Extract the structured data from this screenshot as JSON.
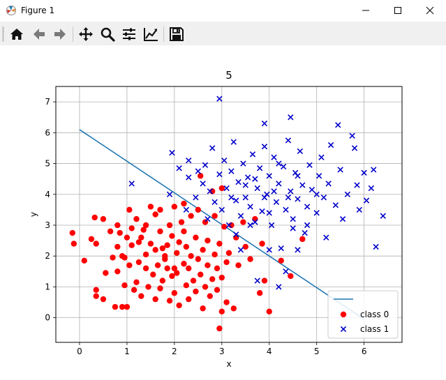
{
  "window": {
    "title": "Figure 1",
    "app_icon": "matplotlib-icon",
    "controls": [
      "minimize-icon",
      "maximize-icon",
      "close-icon"
    ]
  },
  "toolbar": {
    "buttons": [
      "home-icon",
      "back-arrow-icon",
      "forward-arrow-icon",
      "pan-icon",
      "zoom-icon",
      "configure-subplots-icon",
      "edit-axis-icon",
      "save-icon"
    ]
  },
  "colors": {
    "class0": "#ff0000",
    "class1": "#0000cc",
    "line": "#1f77b4"
  },
  "chart_data": {
    "type": "scatter",
    "title": "5",
    "xlabel": "x",
    "ylabel": "y",
    "xlim": [
      -0.5,
      6.8
    ],
    "ylim": [
      -0.8,
      7.5
    ],
    "xticks": [
      "0",
      "1",
      "2",
      "3",
      "4",
      "5",
      "6"
    ],
    "yticks": [
      "0",
      "1",
      "2",
      "3",
      "4",
      "5",
      "6",
      "7"
    ],
    "grid": true,
    "legend_position": "lower-right",
    "boundary_line": {
      "x": [
        0,
        6
      ],
      "y": [
        6.1,
        -0.05
      ]
    },
    "series": [
      {
        "name": "class 0",
        "marker": "o",
        "points": [
          [
            -0.15,
            2.75
          ],
          [
            -0.12,
            2.4
          ],
          [
            0.1,
            1.85
          ],
          [
            0.25,
            2.55
          ],
          [
            0.32,
            3.25
          ],
          [
            0.35,
            2.4
          ],
          [
            0.35,
            0.9
          ],
          [
            0.35,
            0.7
          ],
          [
            0.5,
            0.6
          ],
          [
            0.5,
            3.2
          ],
          [
            0.55,
            1.45
          ],
          [
            0.65,
            2.8
          ],
          [
            0.7,
            1.95
          ],
          [
            0.75,
            0.35
          ],
          [
            0.8,
            1.5
          ],
          [
            0.8,
            3.0
          ],
          [
            0.8,
            2.3
          ],
          [
            0.85,
            2.75
          ],
          [
            0.9,
            0.35
          ],
          [
            0.95,
            1.05
          ],
          [
            0.95,
            1.95
          ],
          [
            1.0,
            2.6
          ],
          [
            1.0,
            0.35
          ],
          [
            1.05,
            1.7
          ],
          [
            1.05,
            3.5
          ],
          [
            1.1,
            2.9
          ],
          [
            1.1,
            2.35
          ],
          [
            1.15,
            0.9
          ],
          [
            1.2,
            1.15
          ],
          [
            1.2,
            3.2
          ],
          [
            1.25,
            1.8
          ],
          [
            1.25,
            2.45
          ],
          [
            1.3,
            0.7
          ],
          [
            1.35,
            2.85
          ],
          [
            1.4,
            1.6
          ],
          [
            1.4,
            3.0
          ],
          [
            1.4,
            2.05
          ],
          [
            1.45,
            1.0
          ],
          [
            1.5,
            3.6
          ],
          [
            1.5,
            2.4
          ],
          [
            1.55,
            1.4
          ],
          [
            1.6,
            2.2
          ],
          [
            1.6,
            0.6
          ],
          [
            1.65,
            1.7
          ],
          [
            1.7,
            2.8
          ],
          [
            1.7,
            0.95
          ],
          [
            1.7,
            3.5
          ],
          [
            1.75,
            1.2
          ],
          [
            1.8,
            2.0
          ],
          [
            1.8,
            1.9
          ],
          [
            1.85,
            1.6
          ],
          [
            1.85,
            2.35
          ],
          [
            1.9,
            0.55
          ],
          [
            1.9,
            3.0
          ],
          [
            1.95,
            1.35
          ],
          [
            1.95,
            2.65
          ],
          [
            2.0,
            0.8
          ],
          [
            2.0,
            3.6
          ],
          [
            2.05,
            2.1
          ],
          [
            2.05,
            1.45
          ],
          [
            2.1,
            2.45
          ],
          [
            2.1,
            0.4
          ],
          [
            2.15,
            3.1
          ],
          [
            2.2,
            1.75
          ],
          [
            2.2,
            2.8
          ],
          [
            2.25,
            1.05
          ],
          [
            2.25,
            2.3
          ],
          [
            2.3,
            0.6
          ],
          [
            2.3,
            1.6
          ],
          [
            2.35,
            3.3
          ],
          [
            2.35,
            2.0
          ],
          [
            2.4,
            1.2
          ],
          [
            2.45,
            2.6
          ],
          [
            2.45,
            0.85
          ],
          [
            2.5,
            1.9
          ],
          [
            2.5,
            3.5
          ],
          [
            2.55,
            4.6
          ],
          [
            2.55,
            1.4
          ],
          [
            2.6,
            2.2
          ],
          [
            2.6,
            0.3
          ],
          [
            2.65,
            1.0
          ],
          [
            2.65,
            3.1
          ],
          [
            2.7,
            1.7
          ],
          [
            2.7,
            2.5
          ],
          [
            2.75,
            0.7
          ],
          [
            2.8,
            4.1
          ],
          [
            2.8,
            1.25
          ],
          [
            2.85,
            2.05
          ],
          [
            2.85,
            3.3
          ],
          [
            2.9,
            0.9
          ],
          [
            2.9,
            1.6
          ],
          [
            2.95,
            2.4
          ],
          [
            2.95,
            -0.35
          ],
          [
            3.0,
            4.2
          ],
          [
            3.0,
            0.2
          ],
          [
            3.0,
            1.3
          ],
          [
            3.05,
            2.95
          ],
          [
            3.1,
            1.8
          ],
          [
            3.1,
            0.5
          ],
          [
            3.15,
            2.1
          ],
          [
            3.2,
            3.0
          ],
          [
            3.25,
            0.3
          ],
          [
            3.3,
            2.6
          ],
          [
            3.35,
            1.7
          ],
          [
            3.45,
            3.1
          ],
          [
            3.5,
            2.3
          ],
          [
            3.6,
            1.9
          ],
          [
            3.7,
            3.2
          ],
          [
            3.8,
            0.8
          ],
          [
            3.85,
            2.4
          ],
          [
            3.9,
            1.2
          ],
          [
            4.0,
            0.2
          ],
          [
            4.25,
            1.85
          ],
          [
            4.45,
            1.35
          ],
          [
            4.7,
            2.55
          ],
          [
            1.6,
            3.35
          ],
          [
            2.2,
            3.7
          ],
          [
            1.3,
            2.6
          ],
          [
            0.9,
            2.0
          ],
          [
            1.75,
            2.25
          ],
          [
            2.0,
            1.6
          ]
        ]
      },
      {
        "name": "class 1",
        "marker": "x",
        "points": [
          [
            1.1,
            4.35
          ],
          [
            1.9,
            4.0
          ],
          [
            1.95,
            5.35
          ],
          [
            2.1,
            4.85
          ],
          [
            2.25,
            3.5
          ],
          [
            2.3,
            4.55
          ],
          [
            2.3,
            5.1
          ],
          [
            2.45,
            3.9
          ],
          [
            2.5,
            4.75
          ],
          [
            2.6,
            4.35
          ],
          [
            2.65,
            4.95
          ],
          [
            2.7,
            3.2
          ],
          [
            2.75,
            4.1
          ],
          [
            2.8,
            5.5
          ],
          [
            2.85,
            3.75
          ],
          [
            2.95,
            4.65
          ],
          [
            2.95,
            7.1
          ],
          [
            3.0,
            3.5
          ],
          [
            3.05,
            5.1
          ],
          [
            3.1,
            4.2
          ],
          [
            3.15,
            3.0
          ],
          [
            3.2,
            4.75
          ],
          [
            3.25,
            5.7
          ],
          [
            3.3,
            3.8
          ],
          [
            3.35,
            4.4
          ],
          [
            3.4,
            3.3
          ],
          [
            3.45,
            5.0
          ],
          [
            3.5,
            3.9
          ],
          [
            3.55,
            4.55
          ],
          [
            3.6,
            3.6
          ],
          [
            3.65,
            5.3
          ],
          [
            3.7,
            3.1
          ],
          [
            3.75,
            4.2
          ],
          [
            3.8,
            4.85
          ],
          [
            3.85,
            3.45
          ],
          [
            3.9,
            5.55
          ],
          [
            3.9,
            6.3
          ],
          [
            3.95,
            4.0
          ],
          [
            4.0,
            4.6
          ],
          [
            4.05,
            3.0
          ],
          [
            4.1,
            5.2
          ],
          [
            4.15,
            3.75
          ],
          [
            4.2,
            4.35
          ],
          [
            4.25,
            2.25
          ],
          [
            4.3,
            4.9
          ],
          [
            4.35,
            3.5
          ],
          [
            4.4,
            5.75
          ],
          [
            4.45,
            4.1
          ],
          [
            4.45,
            6.5
          ],
          [
            4.5,
            3.2
          ],
          [
            4.55,
            4.7
          ],
          [
            4.6,
            3.85
          ],
          [
            4.65,
            5.4
          ],
          [
            4.7,
            4.3
          ],
          [
            4.75,
            2.75
          ],
          [
            4.8,
            3.6
          ],
          [
            4.85,
            4.95
          ],
          [
            4.9,
            4.15
          ],
          [
            5.0,
            3.4
          ],
          [
            5.05,
            4.6
          ],
          [
            5.1,
            5.2
          ],
          [
            5.15,
            3.9
          ],
          [
            5.2,
            2.6
          ],
          [
            5.25,
            4.35
          ],
          [
            5.3,
            5.6
          ],
          [
            5.4,
            3.65
          ],
          [
            5.45,
            6.25
          ],
          [
            5.5,
            4.8
          ],
          [
            5.55,
            3.2
          ],
          [
            5.65,
            4.0
          ],
          [
            5.75,
            5.9
          ],
          [
            5.8,
            5.5
          ],
          [
            5.85,
            4.3
          ],
          [
            5.9,
            3.5
          ],
          [
            6.0,
            4.7
          ],
          [
            6.05,
            3.8
          ],
          [
            6.15,
            4.2
          ],
          [
            6.2,
            4.8
          ],
          [
            6.25,
            2.3
          ],
          [
            6.4,
            3.3
          ],
          [
            4.2,
            1.0
          ],
          [
            4.35,
            1.5
          ],
          [
            3.75,
            1.2
          ],
          [
            4.0,
            2.2
          ],
          [
            3.4,
            2.2
          ],
          [
            3.3,
            2.7
          ],
          [
            4.6,
            2.2
          ],
          [
            4.5,
            2.9
          ],
          [
            3.6,
            3.0
          ],
          [
            3.9,
            3.9
          ],
          [
            4.1,
            4.1
          ],
          [
            4.0,
            3.4
          ],
          [
            3.7,
            4.5
          ],
          [
            4.4,
            3.9
          ],
          [
            4.6,
            4.6
          ],
          [
            3.2,
            3.9
          ],
          [
            3.5,
            4.3
          ],
          [
            4.8,
            3.0
          ],
          [
            5.0,
            4.0
          ],
          [
            4.2,
            5.0
          ]
        ]
      }
    ]
  }
}
